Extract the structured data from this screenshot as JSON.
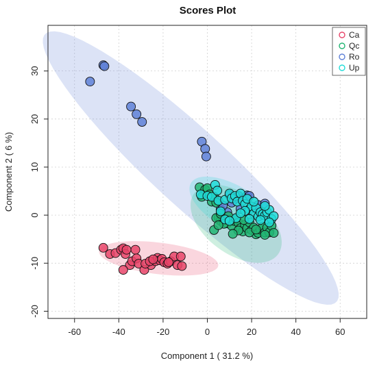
{
  "chart_data": {
    "type": "scatter",
    "title": "Scores Plot",
    "xlabel": "Component 1 ( 31.2 %)",
    "ylabel": "Component 2 ( 6 %)",
    "xlim": [
      -72,
      72
    ],
    "ylim": [
      -21.5,
      39.5
    ],
    "x_ticks": [
      -60,
      -40,
      -20,
      0,
      20,
      40,
      60
    ],
    "y_ticks": [
      -20,
      -10,
      0,
      10,
      20,
      30
    ],
    "grid": true,
    "legend_position": "top-right",
    "series": [
      {
        "name": "Ca",
        "color": "#e8456a",
        "ellipse": {
          "cx": -22,
          "cy": -9,
          "rx": 27,
          "ry": 3.3,
          "angle_deg": -3
        },
        "points": [
          [
            -47,
            -6.8
          ],
          [
            -44,
            -8.1
          ],
          [
            -41.5,
            -7.9
          ],
          [
            -39,
            -7.2
          ],
          [
            -38,
            -6.9
          ],
          [
            -37,
            -8.1
          ],
          [
            -36.5,
            -7.2
          ],
          [
            -35,
            -10.4
          ],
          [
            -34,
            -9.6
          ],
          [
            -32.5,
            -7.2
          ],
          [
            -32,
            -9.0
          ],
          [
            -31,
            -10.1
          ],
          [
            -28.5,
            -11.4
          ],
          [
            -25.5,
            -10.4
          ],
          [
            -23.5,
            -9.6
          ],
          [
            -22.5,
            -8.9
          ],
          [
            -21.5,
            -9.4
          ],
          [
            -20.5,
            -9.1
          ],
          [
            -19.5,
            -9.8
          ],
          [
            -18,
            -10.1
          ],
          [
            -16.5,
            -9.6
          ],
          [
            -15,
            -8.6
          ],
          [
            -13.5,
            -10.4
          ],
          [
            -12,
            -8.6
          ],
          [
            -11.5,
            -10.6
          ],
          [
            -38,
            -11.4
          ],
          [
            -28,
            -10.1
          ],
          [
            -26,
            -9.6
          ],
          [
            -17.5,
            -9.8
          ],
          [
            -24.5,
            -9.2
          ]
        ]
      },
      {
        "name": "Qc",
        "color": "#22b573",
        "ellipse": {
          "cx": 13,
          "cy": -1.8,
          "rx": 21,
          "ry": 7,
          "angle_deg": -12
        },
        "points": [
          [
            -3.5,
            5.8
          ],
          [
            -2.5,
            3.8
          ],
          [
            -1,
            5.3
          ],
          [
            0,
            5.6
          ],
          [
            1,
            4.3
          ],
          [
            2,
            2.8
          ],
          [
            3,
            3.8
          ],
          [
            4,
            2.6
          ],
          [
            5,
            -0.5
          ],
          [
            6,
            -1.2
          ],
          [
            7,
            -0.6
          ],
          [
            8,
            -0.9
          ],
          [
            9,
            -1.7
          ],
          [
            10,
            -1.0
          ],
          [
            11,
            -2.2
          ],
          [
            12,
            -1.2
          ],
          [
            13,
            -0.8
          ],
          [
            14,
            -1.6
          ],
          [
            15,
            -2.7
          ],
          [
            16,
            -3.4
          ],
          [
            17,
            -2.0
          ],
          [
            18,
            -2.7
          ],
          [
            19,
            -1.5
          ],
          [
            20,
            -3.1
          ],
          [
            21,
            -2.6
          ],
          [
            22,
            -4.0
          ],
          [
            23,
            -3.7
          ],
          [
            24,
            -3.0
          ],
          [
            25,
            -2.4
          ],
          [
            26,
            -3.6
          ],
          [
            27,
            -2.6
          ],
          [
            28,
            -3.6
          ],
          [
            29,
            -2.2
          ],
          [
            30,
            -3.7
          ],
          [
            4,
            -0.6
          ],
          [
            6,
            0.3
          ],
          [
            7.5,
            -1.8
          ],
          [
            9.5,
            -0.2
          ],
          [
            14,
            -3.2
          ],
          [
            19,
            -3.6
          ],
          [
            22,
            -3.0
          ],
          [
            26,
            -4.1
          ],
          [
            3,
            -3.1
          ],
          [
            5,
            -2.1
          ],
          [
            11.5,
            -3.9
          ],
          [
            16.5,
            -1.0
          ]
        ]
      },
      {
        "name": "Ro",
        "color": "#5f81d7",
        "ellipse": {
          "cx": -7.5,
          "cy": 9.8,
          "rx": 72,
          "ry": 9.8,
          "angle_deg": -22
        },
        "points": [
          [
            -53,
            27.8
          ],
          [
            -47,
            31.2
          ],
          [
            -46.5,
            31.0
          ],
          [
            -34.5,
            22.6
          ],
          [
            -32,
            21.0
          ],
          [
            -29.5,
            19.4
          ],
          [
            -2.5,
            15.3
          ],
          [
            -1,
            13.8
          ],
          [
            -0.5,
            12.2
          ],
          [
            4,
            3.2
          ],
          [
            6,
            1.2
          ],
          [
            10,
            4.2
          ],
          [
            12,
            3.2
          ],
          [
            14,
            4.0
          ],
          [
            16,
            3.3
          ],
          [
            18,
            4.1
          ],
          [
            19,
            4.0
          ],
          [
            21,
            1.5
          ],
          [
            23,
            2.1
          ],
          [
            26,
            2.4
          ],
          [
            9,
            0.6
          ],
          [
            15,
            1.3
          ],
          [
            7,
            2.0
          ],
          [
            11,
            2.6
          ]
        ]
      },
      {
        "name": "Up",
        "color": "#21dcd8",
        "ellipse": {
          "cx": 11.5,
          "cy": 1.6,
          "rx": 20,
          "ry": 5,
          "angle_deg": -12
        },
        "points": [
          [
            -3,
            4.3
          ],
          [
            0,
            4.0
          ],
          [
            2,
            3.8
          ],
          [
            3.5,
            6.3
          ],
          [
            4.5,
            5.1
          ],
          [
            5,
            3.0
          ],
          [
            8,
            3.2
          ],
          [
            10,
            4.5
          ],
          [
            11,
            3.5
          ],
          [
            12.5,
            4.0
          ],
          [
            13.5,
            2.8
          ],
          [
            15,
            4.5
          ],
          [
            16,
            3.0
          ],
          [
            17,
            2.3
          ],
          [
            18,
            3.4
          ],
          [
            19,
            1.2
          ],
          [
            20,
            1.8
          ],
          [
            21,
            0.3
          ],
          [
            22,
            1.5
          ],
          [
            23,
            -0.3
          ],
          [
            24,
            0.6
          ],
          [
            25,
            0.2
          ],
          [
            26,
            -0.1
          ],
          [
            27,
            0.6
          ],
          [
            28,
            1.1
          ],
          [
            29,
            -0.8
          ],
          [
            30,
            -0.2
          ],
          [
            26,
            1.9
          ],
          [
            17,
            0.9
          ],
          [
            8,
            -0.9
          ],
          [
            13,
            -0.6
          ],
          [
            6,
            0.8
          ],
          [
            21,
            2.8
          ],
          [
            24,
            -1.0
          ],
          [
            15,
            0.4
          ],
          [
            10,
            -1.2
          ],
          [
            19,
            -0.8
          ],
          [
            28,
            -1.5
          ]
        ]
      }
    ]
  }
}
